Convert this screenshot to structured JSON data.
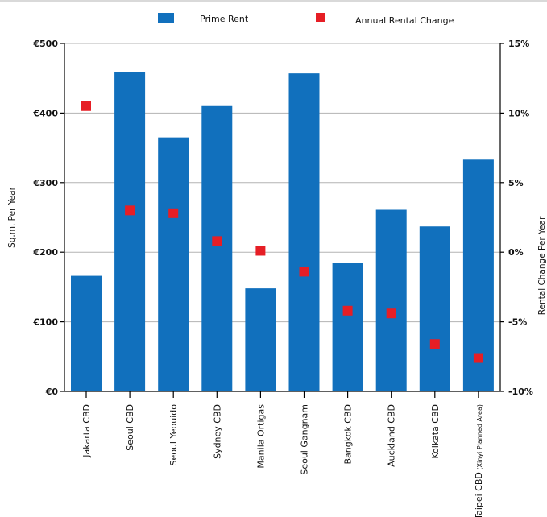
{
  "chart_data": {
    "type": "bar",
    "categories": [
      "Jakarta CBD",
      "Seoul CBD",
      "Seoul Yeouido",
      "Sydney CBD",
      "Manila Ortigas",
      "Seoul Gangnam",
      "Bangkok CBD",
      "Auckland CBD",
      "Kolkata CBD",
      "Taipei CBD"
    ],
    "category_notes": [
      "",
      "",
      "",
      "",
      "",
      "",
      "",
      "",
      "",
      "(Xinyi Planned Area)"
    ],
    "series": [
      {
        "name": "Prime Rent",
        "type": "bar",
        "axis": "left",
        "color": "#1170bd",
        "values": [
          166,
          459,
          365,
          410,
          148,
          457,
          185,
          261,
          237,
          333
        ]
      },
      {
        "name": "Annual Rental Change",
        "type": "scatter",
        "axis": "right",
        "color": "#e61e25",
        "values": [
          10.5,
          3.0,
          2.8,
          0.8,
          0.1,
          -1.4,
          -4.2,
          -4.4,
          -6.6,
          -7.6
        ]
      }
    ],
    "ylabel": "Sq.m. Per Year",
    "y2label": "Rental Change Per Year",
    "ylim": [
      0,
      500
    ],
    "y2lim": [
      -10,
      15
    ],
    "yticks": [
      "€0",
      "€100",
      "€200",
      "€300",
      "€400",
      "€500"
    ],
    "y2ticks": [
      "-10%",
      "-5%",
      "0%",
      "5%",
      "10%",
      "15%"
    ],
    "grid": true,
    "legend": "top-center"
  }
}
